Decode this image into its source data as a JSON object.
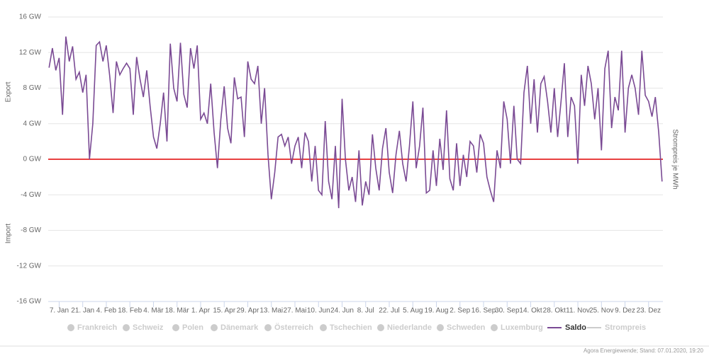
{
  "chart_data": {
    "type": "line",
    "y_label_top": "Export",
    "y_label_bottom": "Import",
    "y2_label": "Strompreis je MWh",
    "footer": "Agora Energiewende; Stand: 07.01.2020, 19:20",
    "ylim": [
      -16,
      16
    ],
    "yticks": [
      {
        "value": -16,
        "label": "-16 GW"
      },
      {
        "value": -12,
        "label": "-12 GW"
      },
      {
        "value": -8,
        "label": "-8 GW"
      },
      {
        "value": -4,
        "label": "-4 GW"
      },
      {
        "value": 0,
        "label": "0 GW"
      },
      {
        "value": 4,
        "label": "4 GW"
      },
      {
        "value": 8,
        "label": "8 GW"
      },
      {
        "value": 12,
        "label": "12 GW"
      },
      {
        "value": 16,
        "label": "16 GW"
      }
    ],
    "grid": true,
    "zero_line_color": "#e00000",
    "categories": [
      null,
      null,
      null,
      "7. Jan",
      null,
      null,
      null,
      null,
      null,
      null,
      "21. Jan",
      null,
      null,
      null,
      null,
      null,
      null,
      "4. Feb",
      null,
      null,
      null,
      null,
      null,
      null,
      "18. Feb",
      null,
      null,
      null,
      null,
      null,
      null,
      "4. Mär",
      null,
      null,
      null,
      null,
      null,
      null,
      "18. Mär",
      null,
      null,
      null,
      null,
      null,
      null,
      "1. Apr",
      null,
      null,
      null,
      null,
      null,
      null,
      "15. Apr",
      null,
      null,
      null,
      null,
      null,
      null,
      "29. Apr",
      null,
      null,
      null,
      null,
      null,
      null,
      "13. Mai",
      null,
      null,
      null,
      null,
      null,
      null,
      "27. Mai",
      null,
      null,
      null,
      null,
      null,
      null,
      "10. Jun",
      null,
      null,
      null,
      null,
      null,
      null,
      "24. Jun",
      null,
      null,
      null,
      null,
      null,
      null,
      "8. Jul",
      null,
      null,
      null,
      null,
      null,
      null,
      "22. Jul",
      null,
      null,
      null,
      null,
      null,
      null,
      "5. Aug",
      null,
      null,
      null,
      null,
      null,
      null,
      "19. Aug",
      null,
      null,
      null,
      null,
      null,
      null,
      "2. Sep",
      null,
      null,
      null,
      null,
      null,
      null,
      "16. Sep",
      null,
      null,
      null,
      null,
      null,
      null,
      "30. Sep",
      null,
      null,
      null,
      null,
      null,
      null,
      "14. Okt",
      null,
      null,
      null,
      null,
      null,
      null,
      "28. Okt",
      null,
      null,
      null,
      null,
      null,
      null,
      "11. Nov",
      null,
      null,
      null,
      null,
      null,
      null,
      "25. Nov",
      null,
      null,
      null,
      null,
      null,
      null,
      "9. Dez",
      null,
      null,
      null,
      null,
      null,
      null,
      "23. Dez",
      null,
      null,
      null,
      null
    ],
    "legend_inactive": [
      "Frankreich",
      "Schweiz",
      "Polen",
      "Dänemark",
      "Österreich",
      "Tschechien",
      "Niederlande",
      "Schweden",
      "Luxemburg"
    ],
    "series": [
      {
        "name": "Saldo",
        "color": "#7a4a94",
        "values": [
          10.3,
          12.5,
          10,
          11.4,
          5,
          13.8,
          11,
          12.7,
          9,
          9.8,
          7.5,
          9.5,
          0,
          4,
          12.8,
          13.2,
          11,
          12.8,
          9.4,
          5.2,
          11,
          9.5,
          10.2,
          10.8,
          10.2,
          5,
          11.5,
          9,
          7,
          10,
          6,
          2.5,
          1.2,
          4,
          7.5,
          2,
          13,
          8,
          6.5,
          13.1,
          7.3,
          5.8,
          12.5,
          10.2,
          12.8,
          4.5,
          5.2,
          4,
          8.5,
          3,
          -1,
          4.5,
          8.2,
          3.5,
          1.8,
          9.2,
          6.8,
          7,
          2.5,
          11,
          9,
          8.5,
          10.5,
          4,
          8,
          0.5,
          -4.5,
          -1.5,
          2.5,
          2.8,
          1.5,
          2.5,
          -0.5,
          1.5,
          2.5,
          -1,
          3,
          2,
          -2.5,
          1.5,
          -3.5,
          -4,
          4.3,
          -2.5,
          -4.5,
          1.5,
          -5.5,
          6.8,
          0,
          -3.5,
          -2,
          -4.8,
          1,
          -5.2,
          -2.5,
          -4,
          2.8,
          -1,
          -3.5,
          1.2,
          3.5,
          -1.5,
          -3.8,
          0.5,
          3.2,
          -0.5,
          -2.5,
          1.5,
          6.5,
          -1,
          1.5,
          5.8,
          -3.8,
          -3.5,
          1,
          -3,
          2.3,
          -1.2,
          5.5,
          -2.2,
          -3.5,
          1.8,
          -3,
          0.5,
          -2,
          2,
          1.5,
          -1.5,
          2.8,
          1.8,
          -2,
          -3.5,
          -4.8,
          1,
          -1,
          6.5,
          4.5,
          -0.5,
          6,
          0,
          -0.5,
          7.5,
          10.5,
          4,
          9,
          3,
          8.5,
          9.3,
          6.5,
          3,
          8,
          2.5,
          6.5,
          10.8,
          2.5,
          7,
          6,
          -0.5,
          9.5,
          6,
          10.5,
          8.5,
          4.5,
          8,
          1,
          10.2,
          12.2,
          3.5,
          7,
          5.5,
          12.2,
          3,
          8,
          9.5,
          8,
          5,
          12.2,
          7.2,
          6.5,
          4.8,
          7,
          3,
          -2.5
        ]
      }
    ],
    "legend_after": [
      "Strompreis"
    ],
    "legend_after_color": "#cccccc"
  }
}
